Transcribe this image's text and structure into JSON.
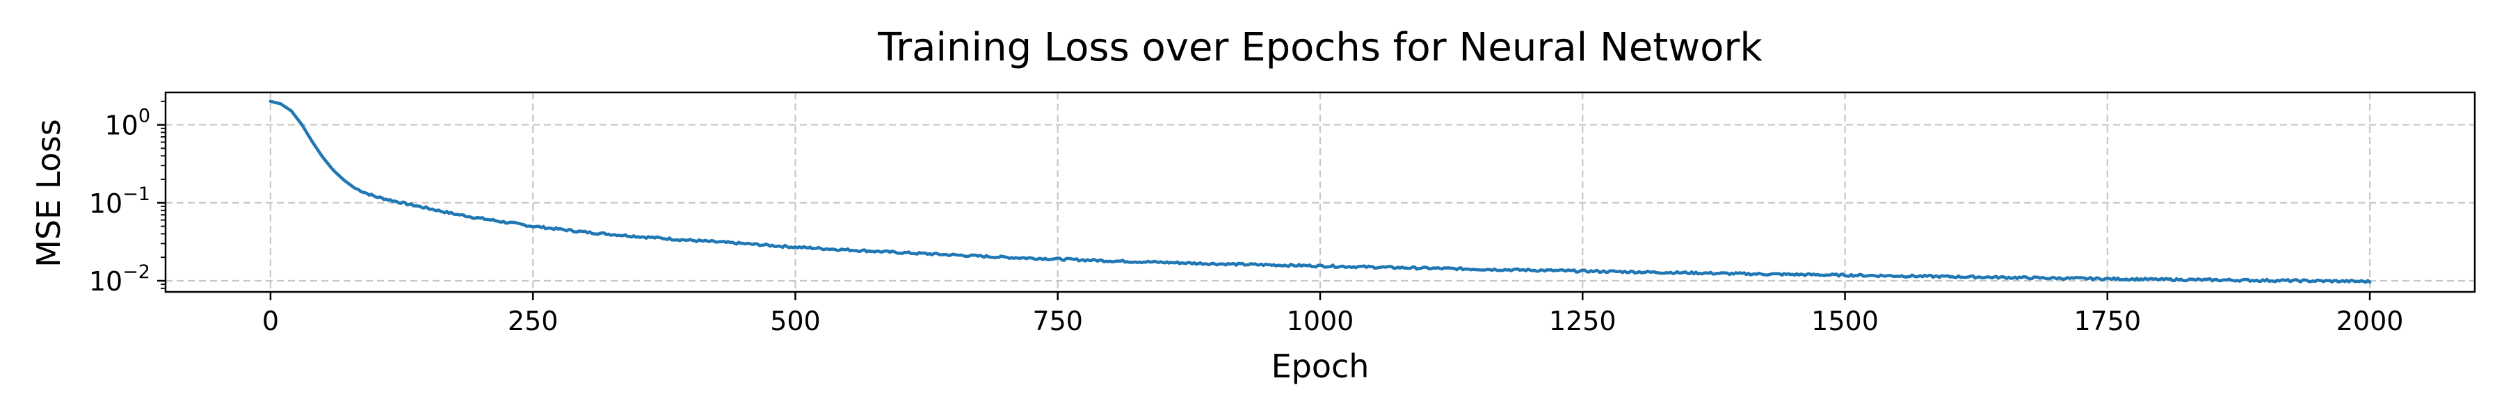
{
  "chart_data": {
    "type": "line",
    "title": "Training Loss over Epochs for Neural Network",
    "xlabel": "Epoch",
    "ylabel": "MSE Loss",
    "xlim": [
      -100,
      2100
    ],
    "ylim": [
      0.0072,
      2.6
    ],
    "yscale": "log",
    "grid": true,
    "x_ticks": [
      0,
      250,
      500,
      750,
      1000,
      1250,
      1500,
      1750,
      2000
    ],
    "x_tick_labels": [
      "0",
      "250",
      "500",
      "750",
      "1000",
      "1250",
      "1500",
      "1750",
      "2000"
    ],
    "y_ticks": [
      0.01,
      0.1,
      1
    ],
    "y_tick_labels": [
      {
        "base": "10",
        "exp": "−2"
      },
      {
        "base": "10",
        "exp": "−1"
      },
      {
        "base": "10",
        "exp": "0"
      }
    ],
    "series": [
      {
        "color": "#1f77b4",
        "x": [
          0,
          10,
          20,
          30,
          40,
          50,
          60,
          70,
          80,
          90,
          100,
          125,
          150,
          175,
          200,
          250,
          300,
          350,
          400,
          450,
          500,
          600,
          700,
          750,
          800,
          900,
          1000,
          1100,
          1200,
          1250,
          1300,
          1400,
          1500,
          1600,
          1700,
          1750,
          1800,
          1900,
          2000
        ],
        "y": [
          2.0,
          1.85,
          1.5,
          1.0,
          0.6,
          0.38,
          0.26,
          0.195,
          0.155,
          0.135,
          0.12,
          0.1,
          0.085,
          0.072,
          0.063,
          0.05,
          0.042,
          0.037,
          0.033,
          0.03,
          0.027,
          0.023,
          0.02,
          0.019,
          0.018,
          0.0165,
          0.0155,
          0.0145,
          0.0137,
          0.0133,
          0.013,
          0.0123,
          0.0118,
          0.0113,
          0.0108,
          0.0106,
          0.0104,
          0.0101,
          0.0098
        ]
      }
    ]
  }
}
